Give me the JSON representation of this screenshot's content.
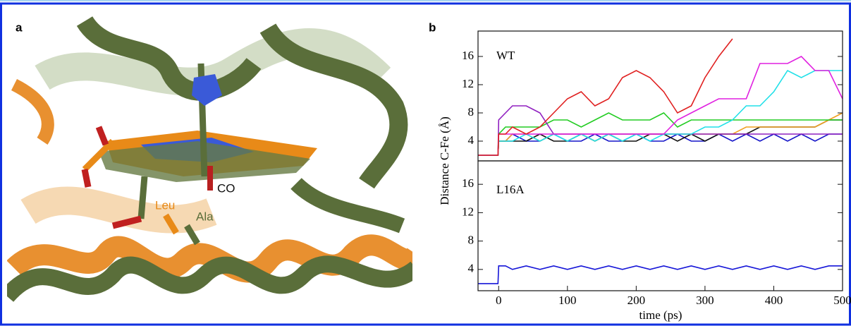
{
  "panel_a": {
    "label": "a",
    "annotations": [
      "Leu",
      "Ala",
      "CO"
    ]
  },
  "chart_data": [
    {
      "type": "line",
      "panel_label": "b",
      "label": "WT",
      "ylabel": "Distance C-Fe (Å)",
      "x": [
        -30,
        -1,
        0,
        10,
        20,
        40,
        60,
        80,
        100,
        120,
        140,
        160,
        180,
        200,
        220,
        240,
        260,
        280,
        300,
        320,
        340,
        360,
        380,
        400,
        420,
        440,
        460,
        480,
        500
      ],
      "xlim": [
        -30,
        500
      ],
      "ylim": [
        1.2,
        19.6
      ],
      "yticks": [
        4,
        8,
        12,
        16
      ],
      "series": [
        {
          "color": "#1515c8",
          "values": [
            2,
            2,
            4,
            4,
            5,
            4,
            4,
            5,
            4,
            4,
            5,
            4,
            4,
            5,
            4,
            4,
            5,
            4,
            4,
            5,
            4,
            5,
            4,
            5,
            4,
            5,
            4,
            5,
            5
          ]
        },
        {
          "color": "#111111",
          "values": [
            2,
            2,
            4,
            4,
            4,
            4,
            5,
            4,
            4,
            5,
            4,
            5,
            4,
            4,
            5,
            5,
            4,
            5,
            4,
            5,
            5,
            5,
            6,
            6,
            6,
            6,
            6,
            7,
            7
          ]
        },
        {
          "color": "#f0a020",
          "values": [
            2,
            2,
            4,
            4,
            5,
            5,
            4,
            5,
            5,
            5,
            4,
            5,
            5,
            5,
            5,
            5,
            5,
            5,
            5,
            5,
            5,
            6,
            6,
            6,
            6,
            6,
            6,
            7,
            8
          ]
        },
        {
          "color": "#22cc22",
          "values": [
            2,
            2,
            5,
            6,
            6,
            6,
            6,
            7,
            7,
            6,
            7,
            8,
            7,
            7,
            7,
            8,
            6,
            7,
            7,
            7,
            7,
            7,
            7,
            7,
            7,
            7,
            7,
            7,
            7
          ]
        },
        {
          "color": "#9020c0",
          "values": [
            2,
            2,
            7,
            8,
            9,
            9,
            8,
            5,
            5,
            5,
            5,
            5,
            5,
            5,
            5,
            5,
            5,
            5,
            5,
            5,
            5,
            5,
            5,
            5,
            5,
            5,
            5,
            5,
            5
          ]
        },
        {
          "color": "#20e0e8",
          "values": [
            2,
            2,
            4,
            4,
            4,
            5,
            4,
            5,
            4,
            5,
            4,
            5,
            4,
            5,
            4,
            5,
            5,
            5,
            6,
            6,
            7,
            9,
            9,
            11,
            14,
            13,
            14,
            14,
            14
          ]
        },
        {
          "color": "#e020e0",
          "values": [
            2,
            2,
            5,
            5,
            5,
            5,
            5,
            5,
            5,
            5,
            5,
            5,
            5,
            5,
            5,
            5,
            7,
            8,
            9,
            10,
            10,
            10,
            15,
            15,
            15,
            16,
            14,
            14,
            10
          ]
        },
        {
          "color": "#e02020",
          "values": [
            2,
            2,
            5,
            5,
            6,
            5,
            6,
            8,
            10,
            11,
            9,
            10,
            13,
            14,
            13,
            11,
            8,
            9,
            13,
            16,
            18.5,
            null,
            null,
            null,
            null,
            null,
            null,
            null,
            null
          ]
        }
      ]
    },
    {
      "type": "line",
      "label": "L16A",
      "xlabel": "time (ps)",
      "x": [
        -30,
        -1,
        0,
        10,
        20,
        40,
        60,
        80,
        100,
        120,
        140,
        160,
        180,
        200,
        220,
        240,
        260,
        280,
        300,
        320,
        340,
        360,
        380,
        400,
        420,
        440,
        460,
        480,
        500
      ],
      "xlim": [
        -30,
        500
      ],
      "ylim": [
        1.0,
        19.3
      ],
      "yticks": [
        4,
        8,
        12,
        16
      ],
      "xticks": [
        0,
        100,
        200,
        300,
        400,
        500
      ],
      "series": [
        {
          "color": "#1515d8",
          "values": [
            2,
            2,
            4.5,
            4.5,
            4,
            4.5,
            4,
            4.5,
            4,
            4.5,
            4,
            4.5,
            4,
            4.5,
            4,
            4.5,
            4,
            4.5,
            4,
            4.5,
            4,
            4.5,
            4,
            4.5,
            4,
            4.5,
            4,
            4.5,
            4.5
          ]
        }
      ]
    }
  ]
}
